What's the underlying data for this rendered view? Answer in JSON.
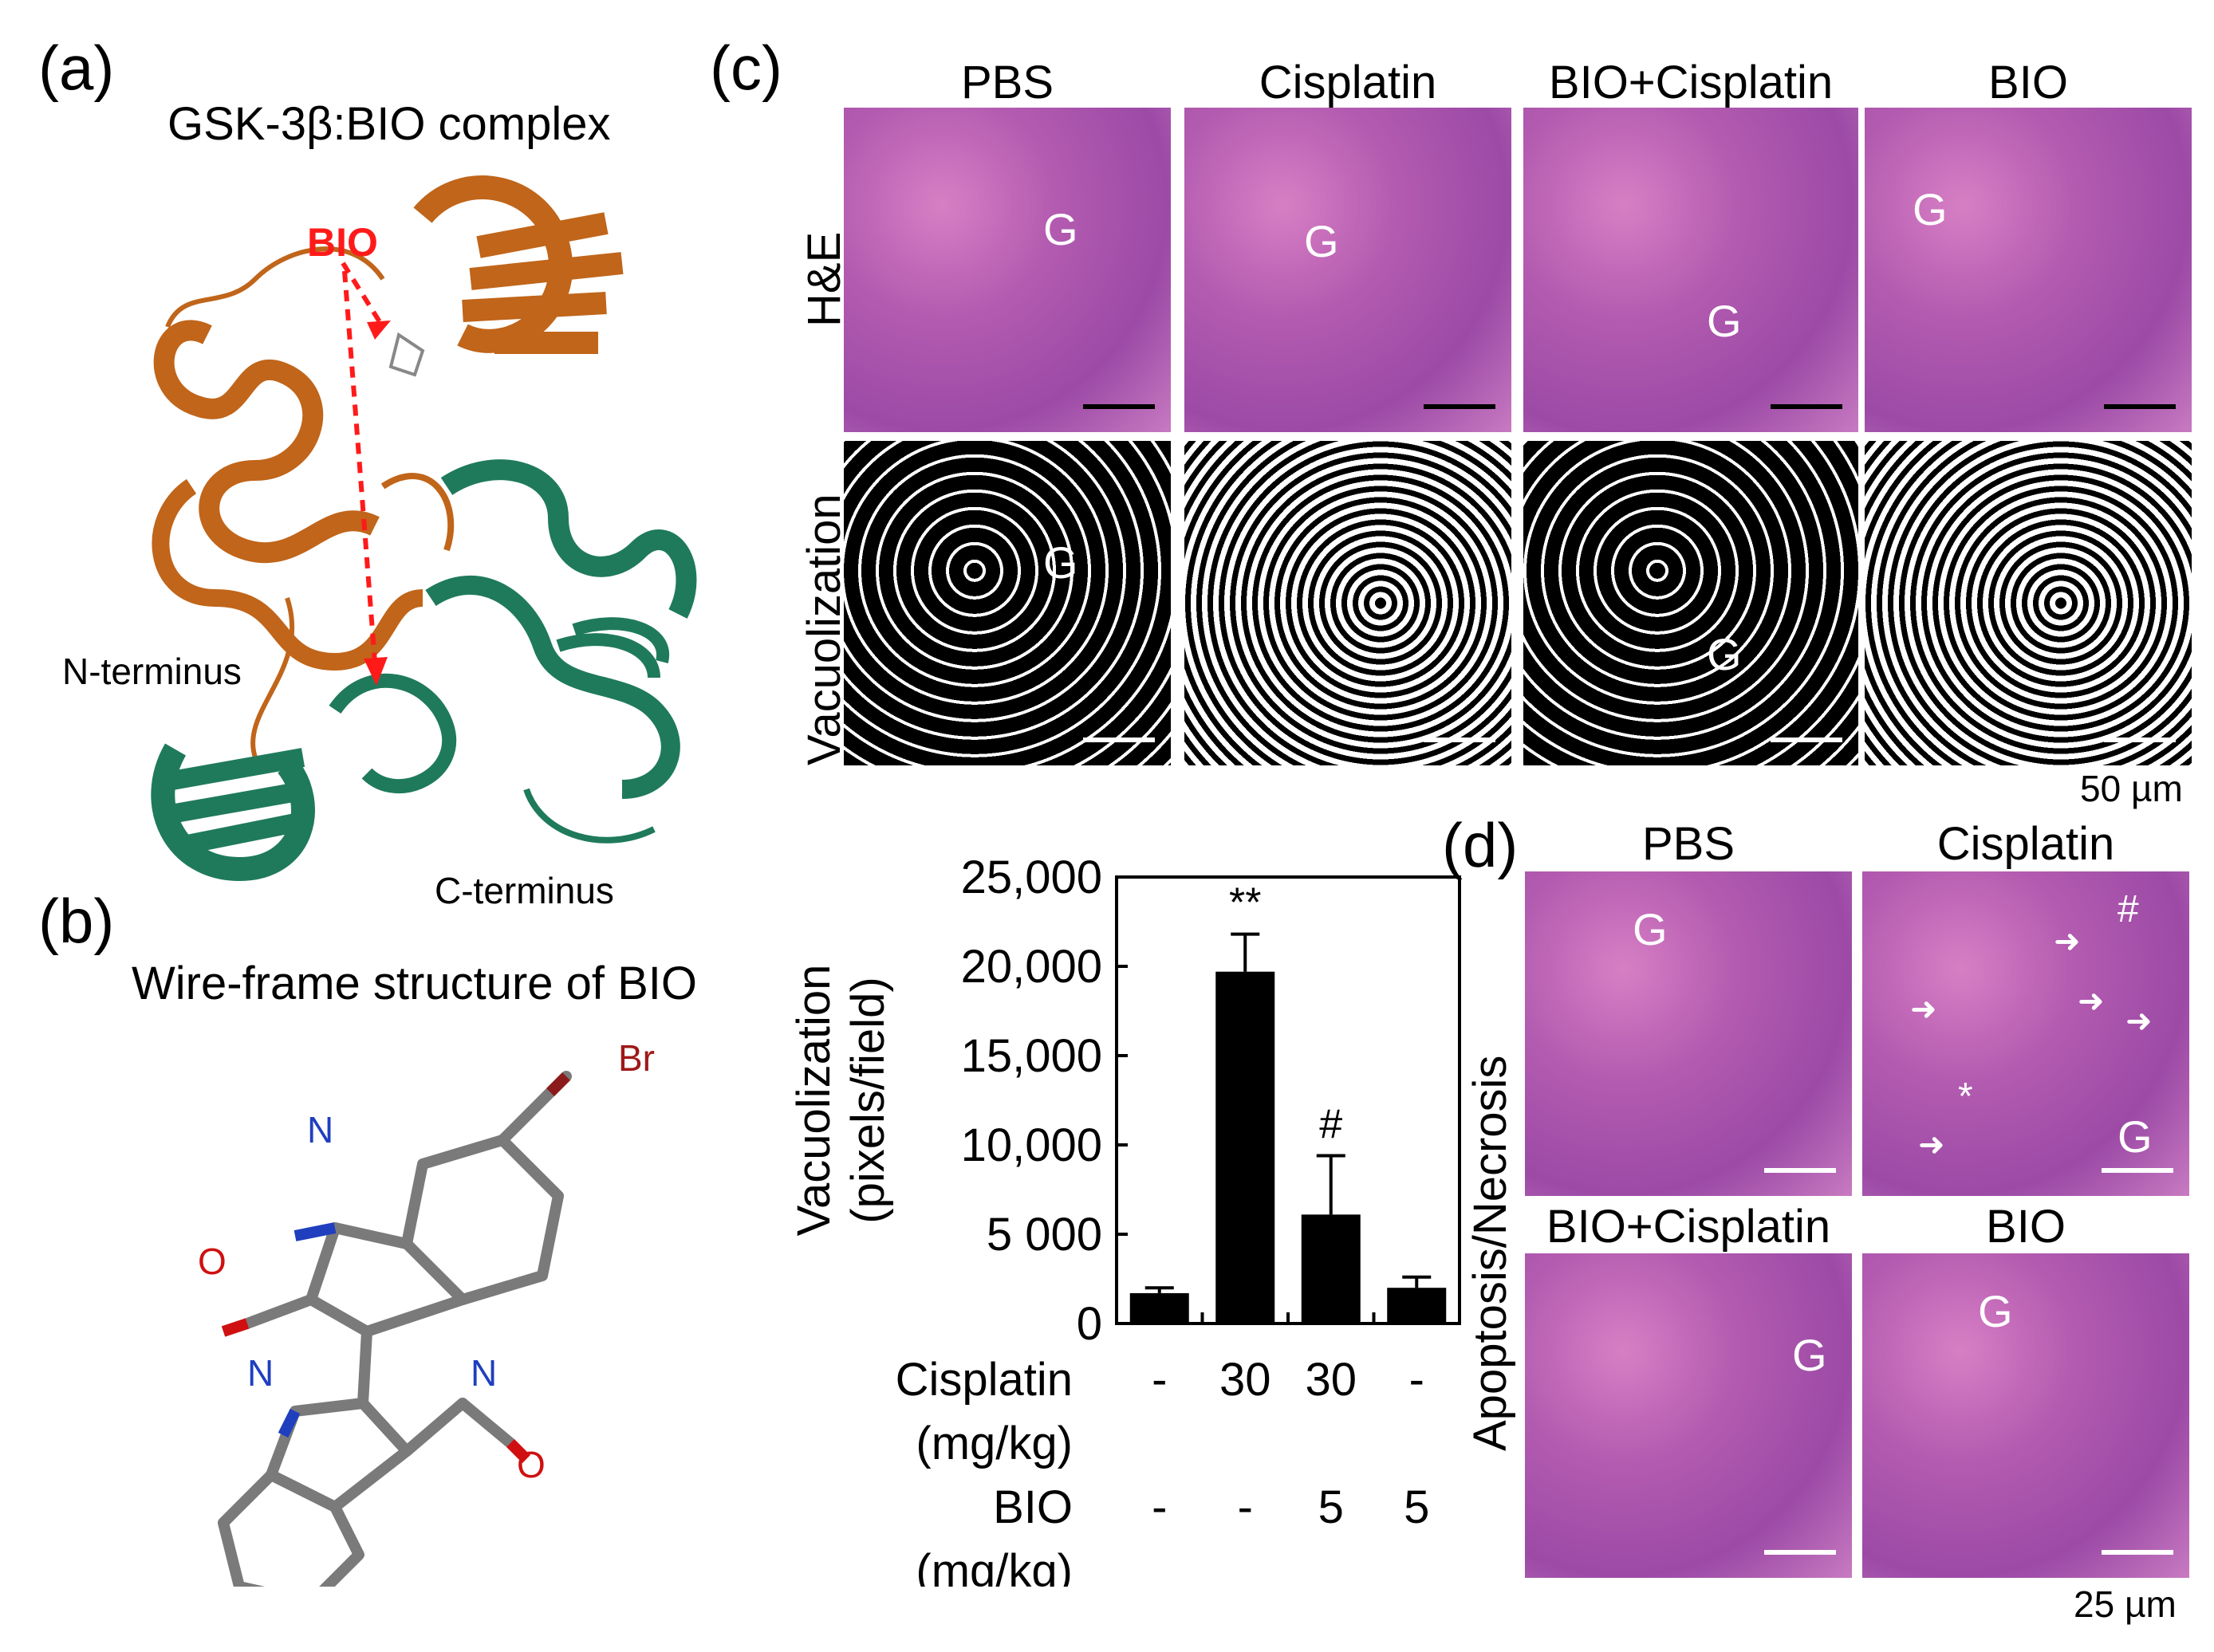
{
  "labels": {
    "a": "(a)",
    "b": "(b)",
    "c": "(c)",
    "d": "(d)"
  },
  "panel_a": {
    "title": "GSK-3β:BIO complex",
    "bio_label": "BIO",
    "n_terminus": "N-terminus",
    "c_terminus": "C-terminus",
    "colors": {
      "n_domain": "#c0651a",
      "c_domain": "#1f7a5c",
      "arrow": "#ff1a1a"
    }
  },
  "panel_b": {
    "title": "Wire-frame structure of BIO",
    "atoms": {
      "br": "Br",
      "n1": "N",
      "o1": "O",
      "n2": "N",
      "n3": "N",
      "o2": "O"
    }
  },
  "panel_c": {
    "columns": [
      "PBS",
      "Cisplatin",
      "BIO+Cisplatin",
      "BIO"
    ],
    "row_he": "H&E",
    "row_vac": "Vacuolization",
    "g": "G",
    "scale": "50 µm"
  },
  "panel_d": {
    "columns_top": [
      "PBS",
      "Cisplatin"
    ],
    "columns_bottom": [
      "BIO+Cisplatin",
      "BIO"
    ],
    "row_label": "Apoptosis/Necrosis",
    "g": "G",
    "hash": "#",
    "star": "*",
    "scale": "25 µm"
  },
  "chart_data": {
    "type": "bar",
    "ylabel": "Vacuolization",
    "ylabel2": "(pixels/field)",
    "ylim": [
      0,
      25000
    ],
    "yticks": [
      "0",
      "5 000",
      "10,000",
      "15,000",
      "20,000",
      "25,000"
    ],
    "ytick_values": [
      0,
      5000,
      10000,
      15000,
      20000,
      25000
    ],
    "values": [
      1700,
      19700,
      6100,
      2000
    ],
    "errors": [
      300,
      2100,
      3300,
      600
    ],
    "annotations": [
      "",
      "**",
      "#",
      ""
    ],
    "cisplatin_label": "Cisplatin",
    "cisplatin_unit": "(mg/kg)",
    "cisplatin_values": [
      "-",
      "30",
      "30",
      "-"
    ],
    "bio_label": "BIO",
    "bio_unit": "(mg/kg)",
    "bio_values": [
      "-",
      "-",
      "5",
      "5"
    ]
  }
}
